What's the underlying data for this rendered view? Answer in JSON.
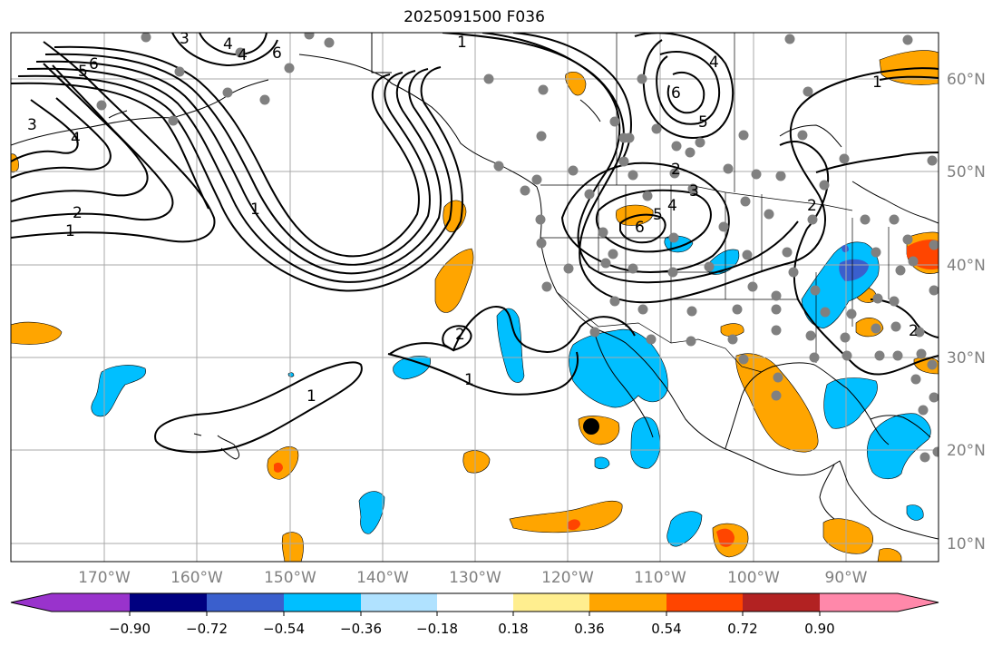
{
  "title": "2025091500 F036",
  "longitude_labels": [
    "170°W",
    "160°W",
    "150°W",
    "140°W",
    "130°W",
    "120°W",
    "110°W",
    "100°W",
    "90°W"
  ],
  "latitude_labels": [
    "60°N",
    "50°N",
    "40°N",
    "30°N",
    "20°N",
    "10°N"
  ],
  "colorbar": {
    "ticks": [
      "−0.90",
      "−0.72",
      "−0.54",
      "−0.36",
      "−0.18",
      "0.18",
      "0.36",
      "0.54",
      "0.72",
      "0.90"
    ],
    "colors": [
      "#9933cc",
      "#000080",
      "#3a5fcd",
      "#00bfff",
      "#b0e2ff",
      "#ffffff",
      "#ffee8f",
      "#ffa500",
      "#ff4500",
      "#b22222",
      "#ff88aa",
      "#ff88aa"
    ]
  },
  "contour_labels": [
    "3",
    "4",
    "5",
    "6",
    "4",
    "6",
    "3",
    "4",
    "2",
    "1",
    "1",
    "6",
    "5",
    "4",
    "1",
    "2",
    "6",
    "5",
    "4",
    "3",
    "2",
    "1",
    "2",
    "1",
    "2",
    "1"
  ],
  "colors": {
    "orange": "#ffa500",
    "blue": "#00bfff",
    "red_orange": "#ff4500",
    "dark_blue": "#3a5fcd",
    "station": "#808080",
    "grid": "#a9a9a9"
  }
}
